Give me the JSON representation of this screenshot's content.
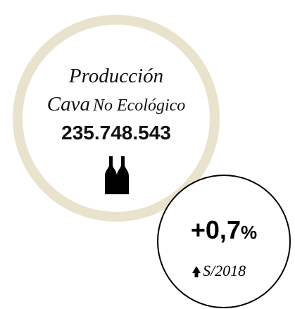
{
  "infographic": {
    "label": {
      "line1": "Producción",
      "line2": [
        "Cava",
        "No Ecológico"
      ]
    },
    "value": "235.748.543",
    "change": {
      "value": "+0,7",
      "unit": "%",
      "reference": "S/2018"
    }
  }
}
